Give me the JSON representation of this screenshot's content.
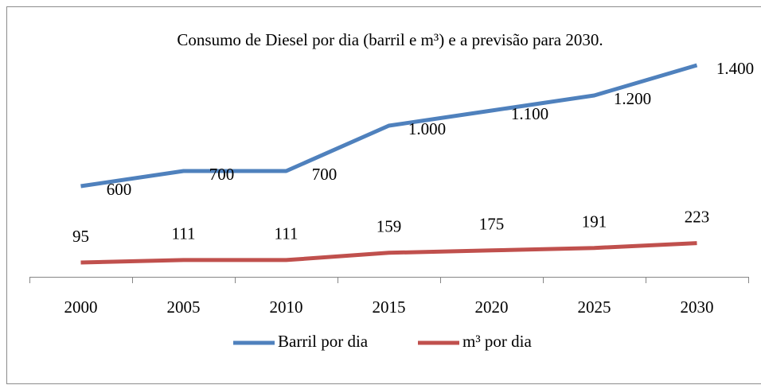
{
  "chart_data": {
    "type": "line",
    "title": "Consumo de Diesel por dia (barril e m³) e a previsão para 2030.",
    "categories": [
      "2000",
      "2005",
      "2010",
      "2015",
      "2020",
      "2025",
      "2030"
    ],
    "series": [
      {
        "name": "Barril por dia",
        "color": "#4f81bd",
        "values": [
          600,
          700,
          700,
          1000,
          1100,
          1200,
          1400
        ],
        "value_labels": [
          "600",
          "700",
          "700",
          "1.000",
          "1.100",
          "1.200",
          "1.400"
        ]
      },
      {
        "name": "m³ por dia",
        "color": "#c0504d",
        "values": [
          95,
          111,
          111,
          159,
          175,
          191,
          223
        ]
      }
    ],
    "ylim": [
      0,
      1600
    ],
    "legend": "bottom"
  }
}
